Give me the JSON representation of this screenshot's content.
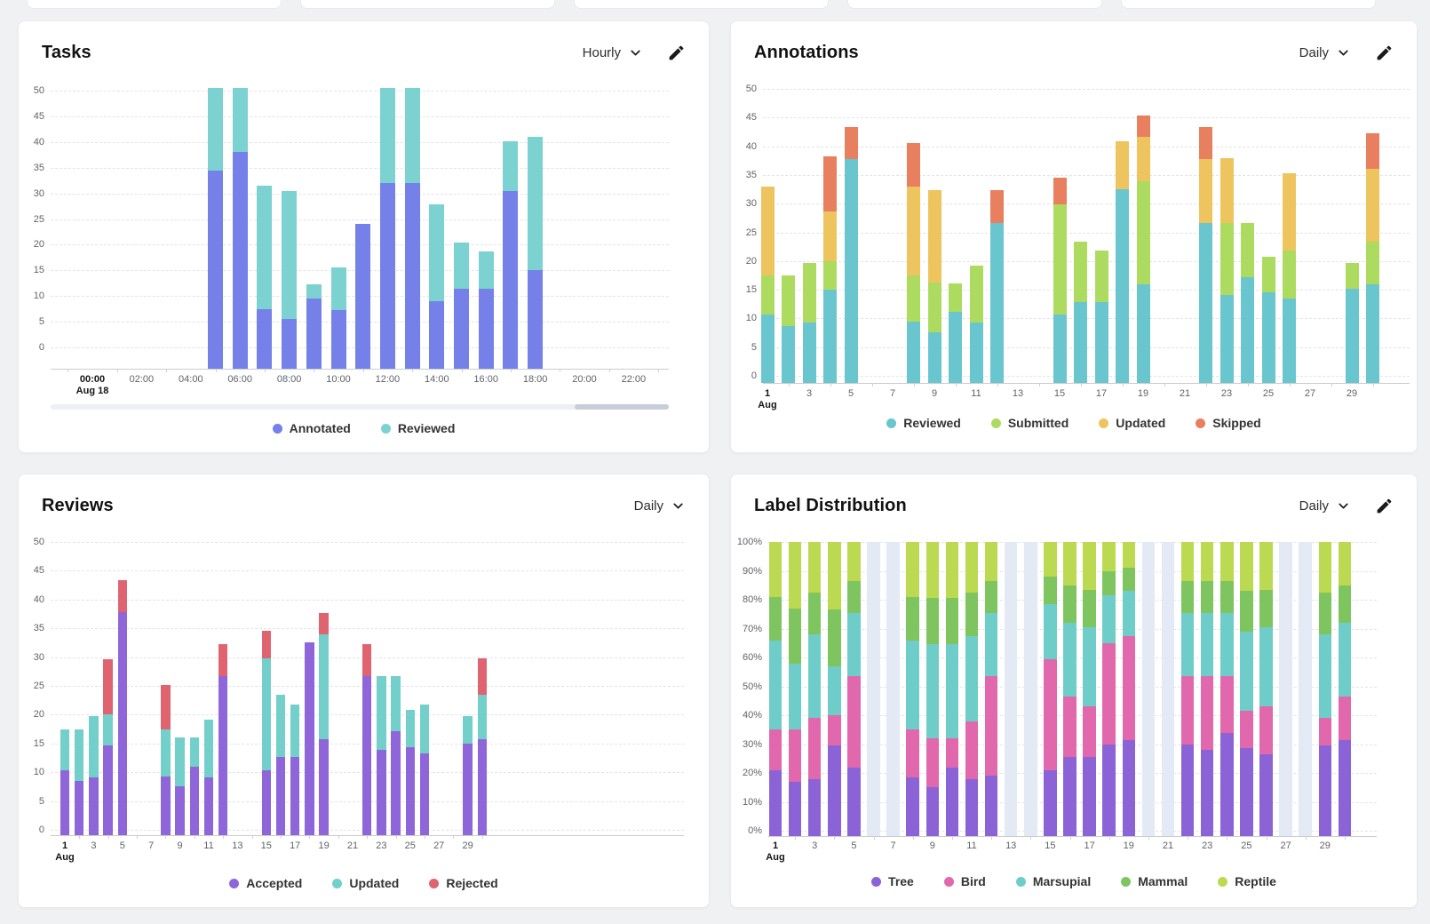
{
  "page": {
    "background": "#f0f1f3",
    "top_partial_cards": 5,
    "scrollbar": {
      "track_color": "#edeff3",
      "thumb_color": "#c7ced9"
    }
  },
  "panels": [
    {
      "id": "tasks",
      "title": "Tasks",
      "frequency": "Hourly",
      "has_edit": true
    },
    {
      "id": "annotations",
      "title": "Annotations",
      "frequency": "Daily",
      "has_edit": true
    },
    {
      "id": "reviews",
      "title": "Reviews",
      "frequency": "Daily",
      "has_edit": false
    },
    {
      "id": "label-distribution",
      "title": "Label Distribution",
      "frequency": "Daily",
      "has_edit": true
    }
  ],
  "chart_data": [
    {
      "id": "tasks",
      "type": "bar",
      "stacked": true,
      "title": "Tasks",
      "interval": "Hourly",
      "x_unit": "hour",
      "x_origin": 0,
      "x": [
        5,
        6,
        7,
        8,
        9,
        10,
        11,
        12,
        13,
        14,
        15,
        16,
        17,
        18
      ],
      "series": [
        {
          "name": "Annotated",
          "color": "#7581e8",
          "values": [
            34.5,
            38,
            7.5,
            5.5,
            9.5,
            7.3,
            24,
            32,
            32,
            9,
            11.5,
            11.5,
            30.5,
            15
          ]
        },
        {
          "name": "Reviewed",
          "color": "#7bd2d0",
          "values": [
            16,
            12.5,
            24,
            25,
            2.8,
            8.2,
            0,
            18.5,
            18.5,
            18.8,
            8.9,
            7.1,
            9.6,
            26
          ]
        }
      ],
      "ylim": [
        0,
        50
      ],
      "y_ticks": [
        0,
        5,
        10,
        15,
        20,
        25,
        30,
        35,
        40,
        45,
        50
      ],
      "y_tick_suffix": "",
      "x_ticks": [
        {
          "value": 0,
          "label": "00:00",
          "sublabel": "Aug 18",
          "bold": true
        },
        {
          "value": 2,
          "label": "02:00"
        },
        {
          "value": 4,
          "label": "04:00"
        },
        {
          "value": 6,
          "label": "06:00"
        },
        {
          "value": 8,
          "label": "08:00"
        },
        {
          "value": 10,
          "label": "10:00"
        },
        {
          "value": 12,
          "label": "12:00"
        },
        {
          "value": 14,
          "label": "14:00"
        },
        {
          "value": 16,
          "label": "16:00"
        },
        {
          "value": 18,
          "label": "18:00"
        },
        {
          "value": 20,
          "label": "20:00"
        },
        {
          "value": 22,
          "label": "22:00"
        }
      ],
      "has_scrollbar": true,
      "note": "Bars at 05:00, 06:00, 12:00 and 13:00 extend past the visible 50 maximum (clipped)."
    },
    {
      "id": "annotations",
      "type": "bar",
      "stacked": true,
      "title": "Annotations",
      "interval": "Daily",
      "x_unit": "day",
      "x_origin": 1,
      "x": [
        1,
        2,
        3,
        4,
        5,
        8,
        9,
        10,
        11,
        12,
        15,
        16,
        17,
        18,
        19,
        22,
        23,
        24,
        25,
        26,
        29,
        30
      ],
      "series": [
        {
          "name": "Reviewed",
          "color": "#69c6cf",
          "values": [
            10.7,
            8.7,
            9.3,
            15,
            37.8,
            9.5,
            7.6,
            11.2,
            9.3,
            26.7,
            10.7,
            12.8,
            12.8,
            32.5,
            16,
            26.7,
            14.1,
            17.2,
            14.5,
            13.5,
            15.1,
            16
          ]
        },
        {
          "name": "Submitted",
          "color": "#addb60",
          "values": [
            6.8,
            8.8,
            10.4,
            5,
            0,
            8,
            8.6,
            4.9,
            9.9,
            0,
            19.1,
            10.6,
            9,
            0,
            17.9,
            0,
            12.6,
            9.5,
            6.3,
            8.3,
            4.6,
            7.4
          ]
        },
        {
          "name": "Updated",
          "color": "#eec45f",
          "values": [
            15.5,
            0,
            0,
            8.7,
            0,
            15.5,
            16.1,
            0,
            0,
            0,
            0,
            0,
            0,
            8.4,
            7.7,
            11.1,
            11.2,
            0,
            0,
            13.5,
            0,
            12.6
          ]
        },
        {
          "name": "Skipped",
          "color": "#e87f5e",
          "values": [
            0,
            0,
            0,
            9.5,
            5.6,
            7.6,
            0,
            0,
            0,
            5.6,
            4.7,
            0,
            0,
            0,
            3.7,
            5.6,
            0,
            0,
            0,
            0,
            0,
            6.3
          ]
        }
      ],
      "ylim": [
        0,
        50
      ],
      "y_ticks": [
        0,
        5,
        10,
        15,
        20,
        25,
        30,
        35,
        40,
        45,
        50
      ],
      "y_tick_suffix": "",
      "x_ticks": [
        {
          "value": 1,
          "label": "1",
          "sublabel": "Aug",
          "bold": true
        },
        {
          "value": 3,
          "label": "3"
        },
        {
          "value": 5,
          "label": "5"
        },
        {
          "value": 7,
          "label": "7"
        },
        {
          "value": 9,
          "label": "9"
        },
        {
          "value": 11,
          "label": "11"
        },
        {
          "value": 13,
          "label": "13"
        },
        {
          "value": 15,
          "label": "15"
        },
        {
          "value": 17,
          "label": "17"
        },
        {
          "value": 19,
          "label": "19"
        },
        {
          "value": 21,
          "label": "21"
        },
        {
          "value": 23,
          "label": "23"
        },
        {
          "value": 25,
          "label": "25"
        },
        {
          "value": 27,
          "label": "27"
        },
        {
          "value": 29,
          "label": "29"
        }
      ],
      "has_scrollbar": false
    },
    {
      "id": "reviews",
      "type": "bar",
      "stacked": true,
      "title": "Reviews",
      "interval": "Daily",
      "x_unit": "day",
      "x_origin": 1,
      "x": [
        1,
        2,
        3,
        4,
        5,
        8,
        9,
        10,
        11,
        12,
        15,
        16,
        17,
        18,
        19,
        22,
        23,
        24,
        25,
        26,
        29,
        30
      ],
      "series": [
        {
          "name": "Accepted",
          "color": "#8e66d9",
          "values": [
            10.4,
            8.5,
            9.1,
            14.7,
            37.8,
            9.2,
            7.5,
            11,
            9.1,
            26.7,
            10.4,
            12.6,
            12.6,
            32.5,
            15.8,
            26.7,
            13.9,
            17.1,
            14.3,
            13.2,
            14.9,
            15.8
          ]
        },
        {
          "name": "Updated",
          "color": "#73cfca",
          "values": [
            7.1,
            9,
            10.6,
            5.3,
            0,
            8.3,
            8.5,
            5,
            10.1,
            0,
            19.4,
            10.8,
            9.2,
            0,
            18.1,
            0,
            12.8,
            9.6,
            6.5,
            8.6,
            4.8,
            7.6
          ]
        },
        {
          "name": "Rejected",
          "color": "#e0646f",
          "values": [
            0,
            0,
            0,
            9.6,
            5.6,
            7.7,
            0,
            0,
            0,
            5.6,
            4.7,
            0,
            0,
            0,
            3.7,
            5.6,
            0,
            0,
            0,
            0,
            0,
            6.4
          ]
        }
      ],
      "ylim": [
        0,
        50
      ],
      "y_ticks": [
        0,
        5,
        10,
        15,
        20,
        25,
        30,
        35,
        40,
        45,
        50
      ],
      "y_tick_suffix": "",
      "x_ticks": [
        {
          "value": 1,
          "label": "1",
          "sublabel": "Aug",
          "bold": true
        },
        {
          "value": 3,
          "label": "3"
        },
        {
          "value": 5,
          "label": "5"
        },
        {
          "value": 7,
          "label": "7"
        },
        {
          "value": 9,
          "label": "9"
        },
        {
          "value": 11,
          "label": "11"
        },
        {
          "value": 13,
          "label": "13"
        },
        {
          "value": 15,
          "label": "15"
        },
        {
          "value": 17,
          "label": "17"
        },
        {
          "value": 19,
          "label": "19"
        },
        {
          "value": 21,
          "label": "21"
        },
        {
          "value": 23,
          "label": "23"
        },
        {
          "value": 25,
          "label": "25"
        },
        {
          "value": 27,
          "label": "27"
        },
        {
          "value": 29,
          "label": "29"
        }
      ],
      "has_scrollbar": false
    },
    {
      "id": "label-distribution",
      "type": "bar",
      "stacked": true,
      "percent": true,
      "title": "Label Distribution",
      "interval": "Daily",
      "x_unit": "day",
      "x_origin": 1,
      "x": [
        1,
        2,
        3,
        4,
        5,
        8,
        9,
        10,
        11,
        12,
        15,
        16,
        17,
        18,
        19,
        22,
        23,
        24,
        25,
        26,
        29,
        30
      ],
      "series": [
        {
          "name": "Tree",
          "color": "#8c63d6",
          "values": [
            21,
            17,
            18,
            29.5,
            22,
            18.5,
            15,
            22,
            18,
            19,
            21,
            25.5,
            25.5,
            30,
            31.5,
            30,
            28,
            34,
            28.5,
            26.5,
            29.5,
            31.5
          ]
        },
        {
          "name": "Bird",
          "color": "#e168ac",
          "values": [
            14,
            18,
            21,
            10.5,
            31.5,
            16.5,
            17,
            10,
            20,
            34.5,
            38.5,
            21,
            17.5,
            35,
            36,
            23.5,
            25.5,
            19.5,
            13,
            16.5,
            9.5,
            15
          ]
        },
        {
          "name": "Marsupial",
          "color": "#6fcdc9",
          "values": [
            31,
            23,
            29,
            17,
            22,
            31,
            32.5,
            32.5,
            29.5,
            22,
            19,
            25.5,
            27.5,
            16.5,
            15.5,
            22,
            22,
            22,
            27.5,
            27.5,
            29,
            25.5
          ]
        },
        {
          "name": "Mammal",
          "color": "#7fc55f",
          "values": [
            15,
            19,
            14.5,
            19.5,
            11,
            15,
            16,
            16,
            15,
            11,
            9.5,
            13,
            13,
            8.5,
            8,
            11,
            11,
            11,
            14,
            13,
            14.5,
            13
          ]
        },
        {
          "name": "Reptile",
          "color": "#bcd952",
          "values": [
            19,
            23,
            17.5,
            23.5,
            13.5,
            19,
            19.5,
            19.5,
            17.5,
            13.5,
            12,
            15,
            16.5,
            10,
            9,
            13.5,
            13.5,
            13.5,
            17,
            16.5,
            17.5,
            15
          ]
        }
      ],
      "ylim": [
        0,
        100
      ],
      "y_ticks": [
        0,
        10,
        20,
        30,
        40,
        50,
        60,
        70,
        80,
        90,
        100
      ],
      "y_tick_suffix": "%",
      "placeholder_x": [
        6,
        7,
        13,
        14,
        20,
        21,
        27,
        28
      ],
      "placeholder_color": "#e3eaf5",
      "x_ticks": [
        {
          "value": 1,
          "label": "1",
          "sublabel": "Aug",
          "bold": true
        },
        {
          "value": 3,
          "label": "3"
        },
        {
          "value": 5,
          "label": "5"
        },
        {
          "value": 7,
          "label": "7"
        },
        {
          "value": 9,
          "label": "9"
        },
        {
          "value": 11,
          "label": "11"
        },
        {
          "value": 13,
          "label": "13"
        },
        {
          "value": 15,
          "label": "15"
        },
        {
          "value": 17,
          "label": "17"
        },
        {
          "value": 19,
          "label": "19"
        },
        {
          "value": 21,
          "label": "21"
        },
        {
          "value": 23,
          "label": "23"
        },
        {
          "value": 25,
          "label": "25"
        },
        {
          "value": 27,
          "label": "27"
        },
        {
          "value": 29,
          "label": "29"
        }
      ],
      "has_scrollbar": false
    }
  ]
}
